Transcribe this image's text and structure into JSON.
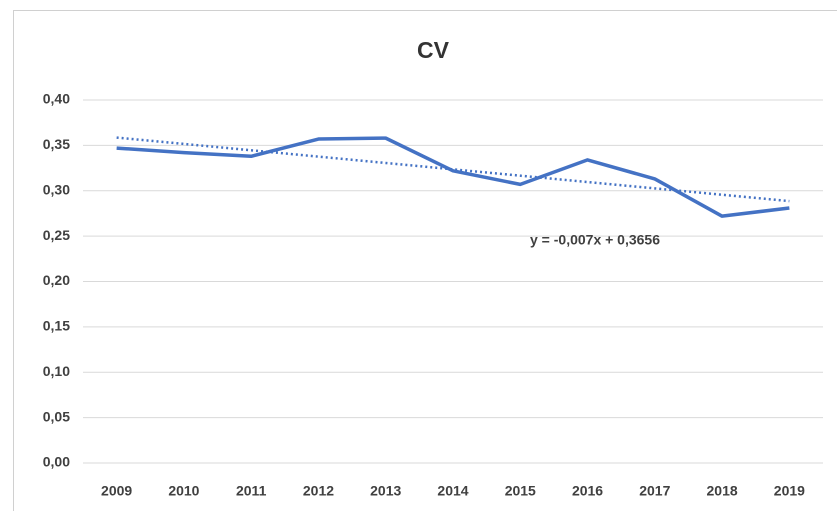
{
  "chart_data": {
    "type": "line",
    "title": "CV",
    "categories": [
      "2009",
      "2010",
      "2011",
      "2012",
      "2013",
      "2014",
      "2015",
      "2016",
      "2017",
      "2018",
      "2019"
    ],
    "series": [
      {
        "name": "CV",
        "color": "#4472c4",
        "values": [
          0.347,
          0.342,
          0.338,
          0.357,
          0.358,
          0.322,
          0.307,
          0.334,
          0.313,
          0.272,
          0.281
        ]
      }
    ],
    "ylim": [
      0,
      0.4
    ],
    "yticks": [
      {
        "value": 0,
        "label": "0,00"
      },
      {
        "value": 0.05,
        "label": "0,05"
      },
      {
        "value": 0.1,
        "label": "0,10"
      },
      {
        "value": 0.15,
        "label": "0,15"
      },
      {
        "value": 0.2,
        "label": "0,20"
      },
      {
        "value": 0.25,
        "label": "0,25"
      },
      {
        "value": 0.3,
        "label": "0,30"
      },
      {
        "value": 0.35,
        "label": "0,35"
      },
      {
        "value": 0.4,
        "label": "0,40"
      }
    ],
    "grid": true,
    "trendline": {
      "slope": -0.007,
      "intercept": 0.3656,
      "color": "#4472c4",
      "label": "y = -0,007x + 0,3656"
    }
  }
}
